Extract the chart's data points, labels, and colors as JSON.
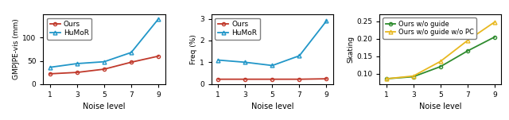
{
  "noise_levels": [
    1,
    3,
    5,
    7,
    9
  ],
  "plot1_ylabel": "GMPJPE-vis (mm)",
  "plot1_xlabel": "Noise level",
  "plot1_ours": [
    22,
    25,
    32,
    47,
    60
  ],
  "plot1_humor": [
    36,
    44,
    48,
    68,
    140
  ],
  "plot1_ylim": [
    0,
    150
  ],
  "plot1_yticks": [
    0,
    50,
    100
  ],
  "plot2_ylabel": "Freq (%)",
  "plot2_xlabel": "Noise level",
  "plot2_ours": [
    0.22,
    0.22,
    0.22,
    0.22,
    0.24
  ],
  "plot2_humor": [
    1.1,
    1.0,
    0.85,
    1.3,
    2.9
  ],
  "plot2_ylim": [
    0,
    3.2
  ],
  "plot2_yticks": [
    0,
    1,
    2,
    3
  ],
  "plot3_ylabel": "Skating",
  "plot3_xlabel": "Noise level",
  "plot3_ours_wog": [
    0.085,
    0.091,
    0.12,
    0.165,
    0.205
  ],
  "plot3_ours_wog_wopc": [
    0.085,
    0.093,
    0.135,
    0.195,
    0.248
  ],
  "plot3_ylim": [
    0.07,
    0.27
  ],
  "plot3_yticks": [
    0.1,
    0.15,
    0.2,
    0.25
  ],
  "color_ours": "#c0392b",
  "color_humor": "#2196c8",
  "color_green": "#2e8b2e",
  "color_orange": "#e8b820",
  "legend1_labels": [
    "Ours",
    "HuMoR"
  ],
  "legend3_labels": [
    "Ours w/o guide",
    "Ours w/o guide w/o PC"
  ]
}
